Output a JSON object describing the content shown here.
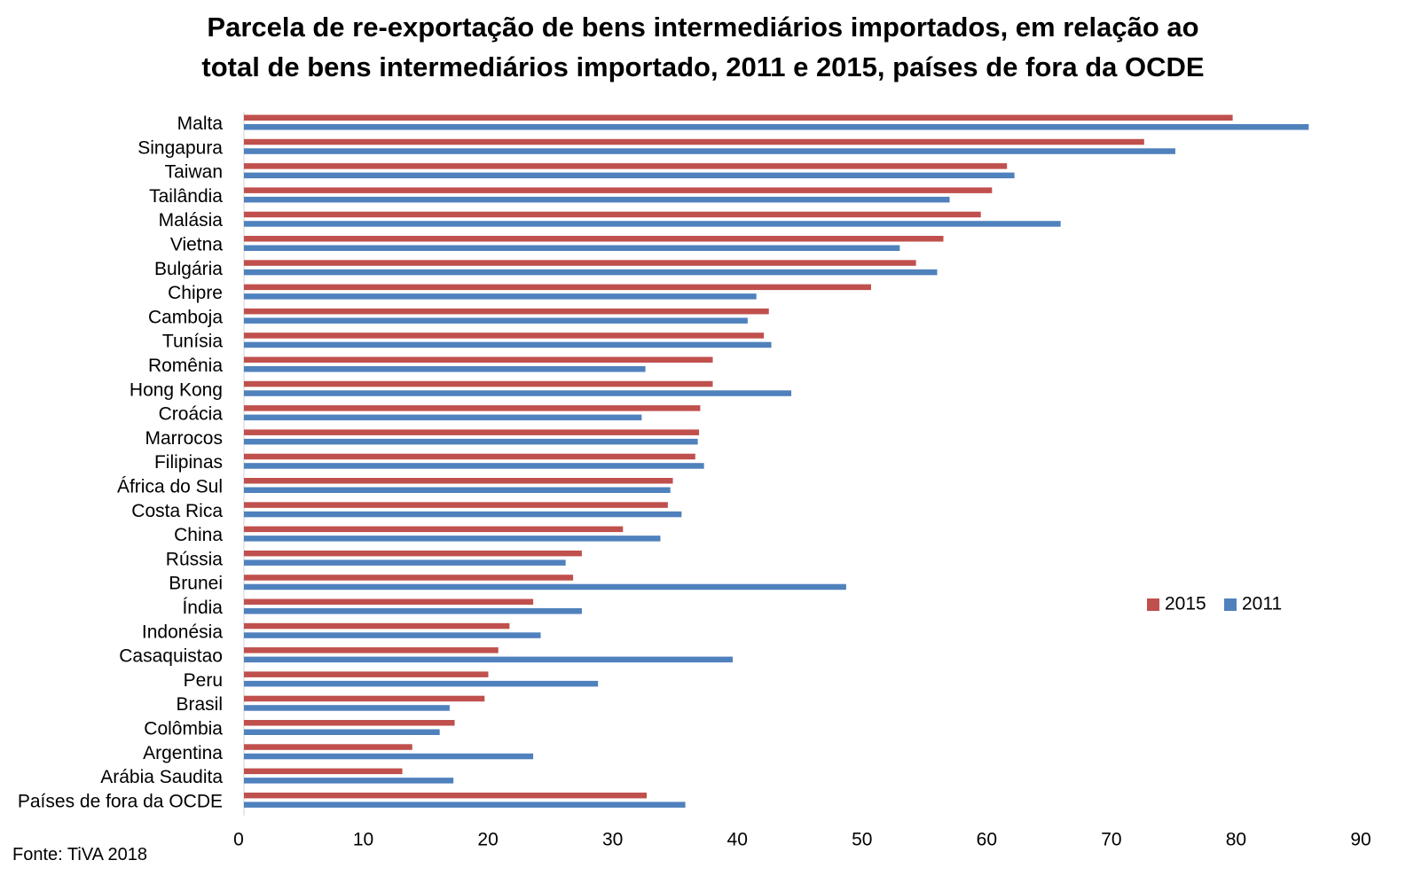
{
  "title_lines": [
    "Parcela de re-exportação de bens intermediários importados, em relação ao",
    "total de bens intermediários importado, 2011 e 2015, países de fora da OCDE"
  ],
  "source": "Fonte: TiVA 2018",
  "chart_data": {
    "type": "bar",
    "orientation": "horizontal",
    "title": "Parcela de re-exportação de bens intermediários importados, em relação ao total de bens intermediários importado, 2011 e 2015, países de fora da OCDE",
    "categories": [
      "Malta",
      "Singapura",
      "Taiwan",
      "Tailândia",
      "Malásia",
      "Vietna",
      "Bulgária",
      "Chipre",
      "Camboja",
      "Tunísia",
      "Romênia",
      "Hong Kong",
      "Croácia",
      "Marrocos",
      "Filipinas",
      "África do Sul",
      "Costa Rica",
      "China",
      "Rússia",
      "Brunei",
      "Índia",
      "Indonésia",
      "Casaquistao",
      "Peru",
      "Brasil",
      "Colômbia",
      "Argentina",
      "Arábia Saudita",
      "Países de fora da OCDE"
    ],
    "series": [
      {
        "name": "2015",
        "color": "#C0504D",
        "values": [
          79.3,
          72.2,
          61.2,
          60.0,
          59.1,
          56.1,
          53.9,
          50.3,
          42.1,
          41.7,
          37.6,
          37.6,
          36.6,
          36.5,
          36.2,
          34.4,
          34.0,
          30.4,
          27.1,
          26.4,
          23.2,
          21.3,
          20.4,
          19.6,
          19.3,
          16.9,
          13.5,
          12.7,
          32.3
        ]
      },
      {
        "name": "2011",
        "color": "#4F81BD",
        "values": [
          85.4,
          74.7,
          61.8,
          56.6,
          65.5,
          52.6,
          55.6,
          41.1,
          40.4,
          42.3,
          32.2,
          43.9,
          31.9,
          36.4,
          36.9,
          34.2,
          35.1,
          33.4,
          25.8,
          48.3,
          27.1,
          23.8,
          39.2,
          28.4,
          16.5,
          15.7,
          23.2,
          16.8,
          35.4
        ]
      }
    ],
    "xlim": [
      0,
      90
    ],
    "xticks": [
      0,
      10,
      20,
      30,
      40,
      50,
      60,
      70,
      80,
      90
    ],
    "grid": false,
    "legend_position": "right"
  }
}
